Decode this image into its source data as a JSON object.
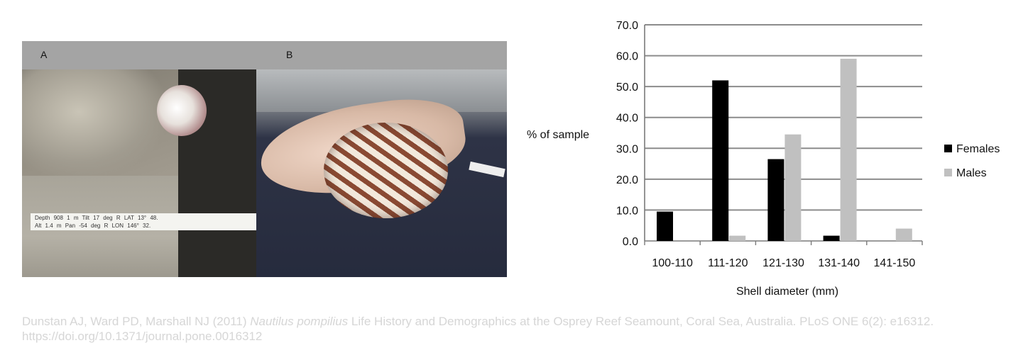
{
  "photos": {
    "panel_a_label": "A",
    "panel_b_label": "B",
    "overlay": {
      "row1": "Depth 908 1 m   Tilt   17 deg   R LAT   13° 48.",
      "row2": "Alt   1.4 m   Pan   -54 deg   R LON  146° 32."
    }
  },
  "chart_data": {
    "type": "bar",
    "categories": [
      "100-110",
      "111-120",
      "121-130",
      "131-140",
      "141-150"
    ],
    "series": [
      {
        "name": "Females",
        "values": [
          9.5,
          52.0,
          26.5,
          1.7,
          0.0
        ],
        "color": "#000000"
      },
      {
        "name": "Males",
        "values": [
          0.0,
          1.7,
          34.5,
          59.0,
          4.0
        ],
        "color": "#c0c0c0"
      }
    ],
    "ylim": [
      0,
      70
    ],
    "yticks": [
      "0.0",
      "10.0",
      "20.0",
      "30.0",
      "40.0",
      "50.0",
      "60.0",
      "70.0"
    ],
    "ylabel": "% of sample",
    "xlabel": "Shell diameter (mm)",
    "grid": true,
    "legend_position": "right"
  },
  "citation": {
    "authors": "Dunstan AJ, Ward PD, Marshall NJ (2011) ",
    "species": "Nautilus pompilius",
    "rest": " Life History and Demographics at the Osprey Reef Seamount, Coral Sea, Australia. PLoS ONE 6(2): e16312. https://doi.org/10.1371/journal.pone.0016312"
  }
}
